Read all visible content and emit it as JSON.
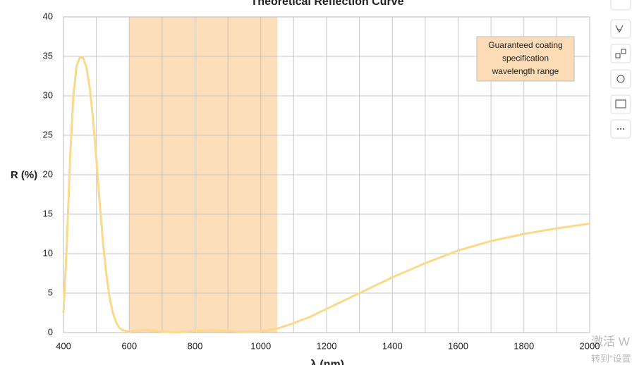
{
  "chart_data": {
    "type": "line",
    "title": "Theoretical Reflection Curve",
    "xlabel": "λ (nm)",
    "ylabel": "R (%)",
    "series": [
      {
        "name": "R",
        "color": "#fbd98b",
        "x": [
          400,
          410,
          420,
          430,
          440,
          450,
          460,
          470,
          480,
          490,
          500,
          510,
          520,
          530,
          540,
          550,
          560,
          570,
          580,
          600,
          620,
          650,
          700,
          750,
          800,
          850,
          900,
          950,
          1000,
          1050,
          1100,
          1150,
          1200,
          1300,
          1400,
          1500,
          1600,
          1700,
          1800,
          1900,
          2000
        ],
        "values": [
          2.5,
          11,
          22,
          30,
          33.8,
          34.9,
          34.8,
          33.6,
          31,
          27,
          22,
          16.5,
          11.5,
          7.5,
          4.5,
          2.5,
          1.3,
          0.6,
          0.3,
          0.1,
          0.25,
          0.35,
          0.1,
          0.05,
          0.2,
          0.3,
          0.2,
          0.1,
          0.15,
          0.5,
          1.2,
          2,
          3,
          5,
          7,
          8.8,
          10.4,
          11.6,
          12.5,
          13.2,
          13.8
        ]
      }
    ],
    "xlim": [
      400,
      2000
    ],
    "ylim": [
      0,
      40
    ],
    "xticks": [
      400,
      600,
      800,
      1000,
      1200,
      1400,
      1600,
      1800,
      2000
    ],
    "x_minor_ticks": [
      500,
      700,
      900,
      1100,
      1300,
      1500,
      1700,
      1900
    ],
    "yticks": [
      0,
      5,
      10,
      15,
      20,
      25,
      30,
      35,
      40
    ],
    "grid": true,
    "shaded_range": {
      "x": [
        600,
        1050
      ],
      "color": "#fcdcb6"
    },
    "annotation": [
      "Guaranteed coating",
      "specification",
      "wavelength range"
    ],
    "watermark": [
      "激活 W",
      "转到\"设置"
    ]
  }
}
